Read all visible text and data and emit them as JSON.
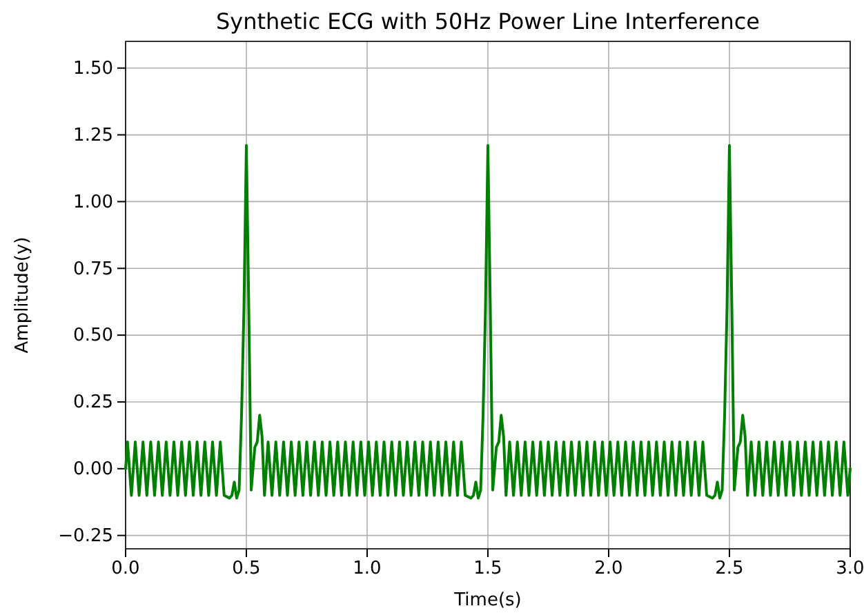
{
  "chart_data": {
    "type": "line",
    "title": "Synthetic ECG with 50Hz Power Line Interference",
    "xlabel": "Time(s)",
    "ylabel": "Amplitude(y)",
    "xlim": [
      0,
      3
    ],
    "ylim": [
      -0.3,
      1.6
    ],
    "xticks": [
      {
        "value": 0,
        "label": "0.0"
      },
      {
        "value": 0.5,
        "label": "0.5"
      },
      {
        "value": 1,
        "label": "1.0"
      },
      {
        "value": 1.5,
        "label": "1.5"
      },
      {
        "value": 2,
        "label": "2.0"
      },
      {
        "value": 2.5,
        "label": "2.5"
      },
      {
        "value": 3,
        "label": "3.0"
      }
    ],
    "yticks": [
      {
        "value": -0.25,
        "label": "−0.25"
      },
      {
        "value": 0,
        "label": "0.00"
      },
      {
        "value": 0.25,
        "label": "0.25"
      },
      {
        "value": 0.5,
        "label": "0.50"
      },
      {
        "value": 0.75,
        "label": "0.75"
      },
      {
        "value": 1,
        "label": "1.00"
      },
      {
        "value": 1.25,
        "label": "1.25"
      },
      {
        "value": 1.5,
        "label": "1.50"
      }
    ],
    "grid": true,
    "line_style": "solid",
    "marker": "none",
    "series": [
      {
        "color": "#008000",
        "x": [
          0,
          0.008,
          0.024,
          0.04,
          0.056,
          0.072,
          0.088,
          0.104,
          0.12,
          0.136,
          0.152,
          0.168,
          0.184,
          0.2,
          0.216,
          0.232,
          0.248,
          0.264,
          0.28,
          0.296,
          0.312,
          0.328,
          0.344,
          0.36,
          0.376,
          0.392,
          0.408,
          0.43,
          0.44,
          0.45,
          0.46,
          0.47,
          0.48,
          0.49,
          0.5,
          0.51,
          0.52,
          0.535,
          0.545,
          0.555,
          0.565,
          0.575,
          0.59,
          0.606,
          0.622,
          0.638,
          0.654,
          0.67,
          0.686,
          0.702,
          0.718,
          0.734,
          0.75,
          0.766,
          0.782,
          0.798,
          0.814,
          0.83,
          0.846,
          0.862,
          0.878,
          0.894,
          0.91,
          0.926,
          0.942,
          0.958,
          0.974,
          0.99,
          1.006,
          1.022,
          1.038,
          1.054,
          1.07,
          1.086,
          1.102,
          1.118,
          1.134,
          1.15,
          1.166,
          1.182,
          1.198,
          1.214,
          1.23,
          1.246,
          1.262,
          1.278,
          1.294,
          1.31,
          1.326,
          1.342,
          1.358,
          1.374,
          1.39,
          1.406,
          1.43,
          1.44,
          1.45,
          1.46,
          1.47,
          1.48,
          1.49,
          1.5,
          1.51,
          1.52,
          1.535,
          1.545,
          1.555,
          1.565,
          1.575,
          1.59,
          1.606,
          1.622,
          1.638,
          1.654,
          1.67,
          1.686,
          1.702,
          1.718,
          1.734,
          1.75,
          1.766,
          1.782,
          1.798,
          1.814,
          1.83,
          1.846,
          1.862,
          1.878,
          1.894,
          1.91,
          1.926,
          1.942,
          1.958,
          1.974,
          1.99,
          2.006,
          2.022,
          2.038,
          2.054,
          2.07,
          2.086,
          2.102,
          2.118,
          2.134,
          2.15,
          2.166,
          2.182,
          2.198,
          2.214,
          2.23,
          2.246,
          2.262,
          2.278,
          2.294,
          2.31,
          2.326,
          2.342,
          2.358,
          2.374,
          2.39,
          2.406,
          2.43,
          2.44,
          2.45,
          2.46,
          2.47,
          2.48,
          2.49,
          2.5,
          2.51,
          2.52,
          2.535,
          2.545,
          2.555,
          2.565,
          2.575,
          2.59,
          2.606,
          2.622,
          2.638,
          2.654,
          2.67,
          2.686,
          2.702,
          2.718,
          2.734,
          2.75,
          2.766,
          2.782,
          2.798,
          2.814,
          2.83,
          2.846,
          2.862,
          2.878,
          2.894,
          2.91,
          2.926,
          2.942,
          2.958,
          2.974,
          2.99,
          3.0
        ],
        "values": [
          0,
          0.1,
          -0.1,
          0.1,
          -0.1,
          0.1,
          -0.1,
          0.1,
          -0.1,
          0.1,
          -0.1,
          0.1,
          -0.1,
          0.1,
          -0.1,
          0.1,
          -0.1,
          0.1,
          -0.1,
          0.1,
          -0.1,
          0.1,
          -0.1,
          0.1,
          -0.1,
          0.1,
          -0.1,
          -0.11,
          -0.1,
          -0.05,
          -0.11,
          -0.08,
          0.2,
          0.6,
          1.21,
          0.6,
          -0.08,
          0.08,
          0.1,
          0.2,
          0.12,
          -0.1,
          0.1,
          -0.1,
          0.1,
          -0.1,
          0.1,
          -0.1,
          0.1,
          -0.1,
          0.1,
          -0.1,
          0.1,
          -0.1,
          0.1,
          -0.1,
          0.1,
          -0.1,
          0.1,
          -0.1,
          0.1,
          -0.1,
          0.1,
          -0.1,
          0.1,
          -0.1,
          0.1,
          -0.1,
          0.1,
          -0.1,
          0.1,
          -0.1,
          0.1,
          -0.1,
          0.1,
          -0.1,
          0.1,
          -0.1,
          0.1,
          -0.1,
          0.1,
          -0.1,
          0.1,
          -0.1,
          0.1,
          -0.1,
          0.1,
          -0.1,
          0.1,
          -0.1,
          0.1,
          -0.1,
          0.1,
          -0.1,
          -0.11,
          -0.1,
          -0.05,
          -0.11,
          -0.08,
          0.2,
          0.6,
          1.21,
          0.6,
          -0.08,
          0.08,
          0.1,
          0.2,
          0.12,
          -0.1,
          0.1,
          -0.1,
          0.1,
          -0.1,
          0.1,
          -0.1,
          0.1,
          -0.1,
          0.1,
          -0.1,
          0.1,
          -0.1,
          0.1,
          -0.1,
          0.1,
          -0.1,
          0.1,
          -0.1,
          0.1,
          -0.1,
          0.1,
          -0.1,
          0.1,
          -0.1,
          0.1,
          -0.1,
          0.1,
          -0.1,
          0.1,
          -0.1,
          0.1,
          -0.1,
          0.1,
          -0.1,
          0.1,
          -0.1,
          0.1,
          -0.1,
          0.1,
          -0.1,
          0.1,
          -0.1,
          0.1,
          -0.1,
          0.1,
          -0.1,
          0.1,
          -0.1,
          0.1,
          -0.1,
          0.1,
          -0.1,
          -0.11,
          -0.1,
          -0.05,
          -0.11,
          -0.08,
          0.2,
          0.6,
          1.21,
          0.6,
          -0.08,
          0.08,
          0.1,
          0.2,
          0.12,
          -0.1,
          0.1,
          -0.1,
          0.1,
          -0.1,
          0.1,
          -0.1,
          0.1,
          -0.1,
          0.1,
          -0.1,
          0.1,
          -0.1,
          0.1,
          -0.1,
          0.1,
          -0.1,
          0.1,
          -0.1,
          0.1,
          -0.1,
          0.1,
          -0.1,
          0.1,
          -0.1,
          0.1,
          -0.1,
          0
        ]
      }
    ]
  }
}
